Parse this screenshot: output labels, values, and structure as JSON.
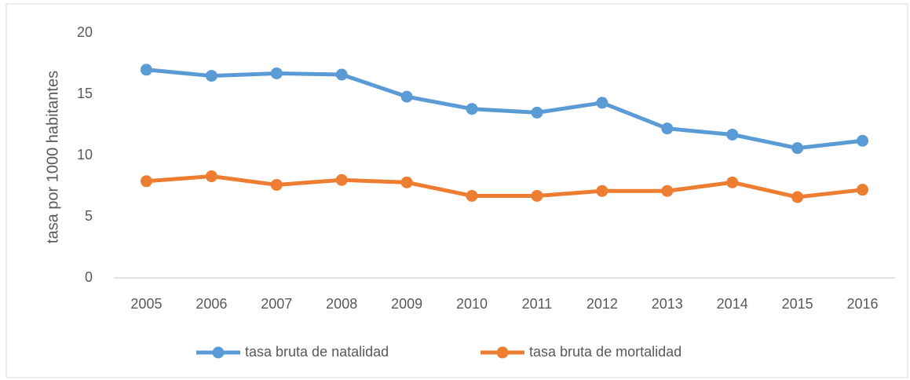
{
  "chart_data": {
    "type": "line",
    "y_label": "tasa por 1000 habitantes",
    "categories": [
      "2005",
      "2006",
      "2007",
      "2008",
      "2009",
      "2010",
      "2011",
      "2012",
      "2013",
      "2014",
      "2015",
      "2016"
    ],
    "series": [
      {
        "name": "tasa bruta de natalidad",
        "color": "#5b9bd5",
        "values": [
          17.0,
          16.5,
          16.7,
          16.6,
          14.8,
          13.8,
          13.5,
          14.3,
          12.2,
          11.7,
          10.6,
          11.2
        ]
      },
      {
        "name": "tasa bruta de mortalidad",
        "color": "#ed7d31",
        "values": [
          7.9,
          8.3,
          7.6,
          8.0,
          7.8,
          6.7,
          6.7,
          7.1,
          7.1,
          7.8,
          6.6,
          7.2
        ]
      }
    ],
    "ylim": [
      0,
      20
    ],
    "yticks": [
      0,
      5,
      10,
      15,
      20
    ],
    "grid": false,
    "legend": "bottom"
  }
}
